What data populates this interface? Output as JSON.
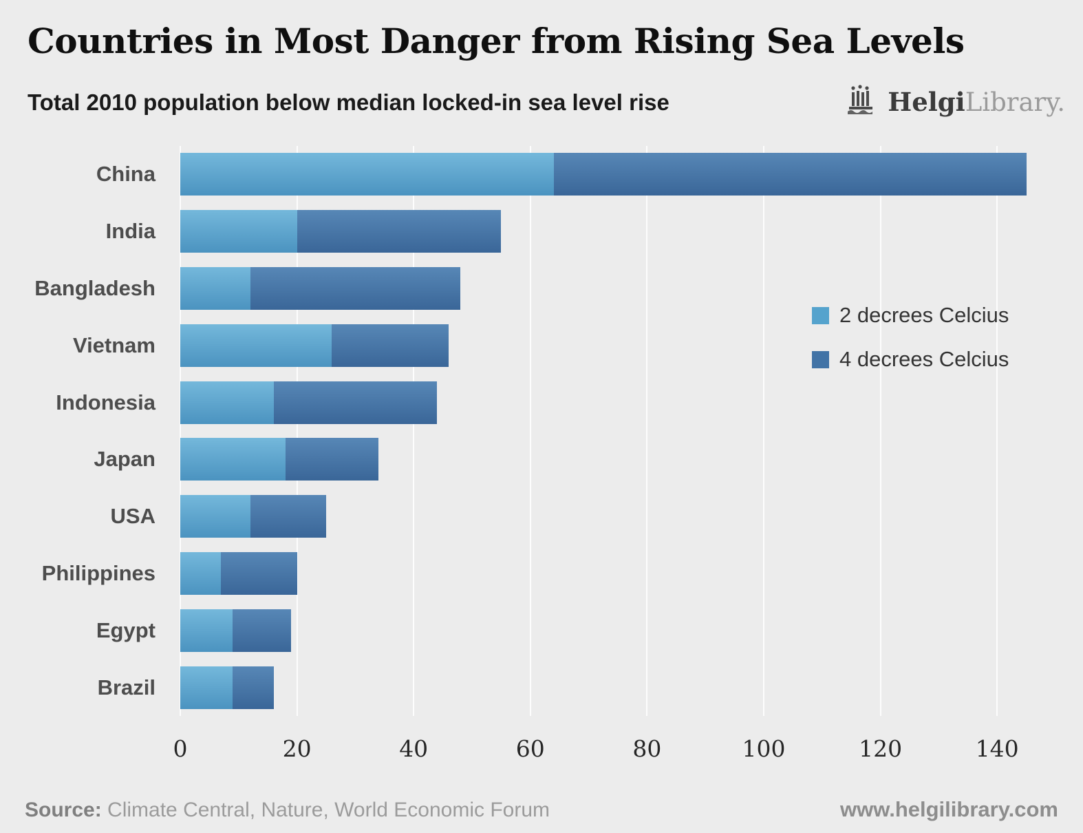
{
  "header": {
    "title": "Countries in Most Danger from Rising Sea Levels",
    "subtitle": "Total 2010 population below median locked-in sea level rise",
    "logo": {
      "bold": "Helgi",
      "light": "Library."
    }
  },
  "chart_data": {
    "type": "bar",
    "orientation": "horizontal",
    "stacked": true,
    "title": "Countries in Most Danger from Rising Sea Levels",
    "subtitle": "Total 2010 population below median locked-in sea level rise",
    "xlabel": "",
    "ylabel": "",
    "categories": [
      "China",
      "India",
      "Bangladesh",
      "Vietnam",
      "Indonesia",
      "Japan",
      "USA",
      "Philippines",
      "Egypt",
      "Brazil"
    ],
    "series": [
      {
        "name": "2 decrees Celcius",
        "color": "#55a3cd",
        "values": [
          64,
          20,
          12,
          26,
          16,
          18,
          12,
          7,
          9,
          9
        ]
      },
      {
        "name": "4 decrees Celcius",
        "color": "#4173a6",
        "values": [
          81,
          35,
          36,
          20,
          28,
          16,
          13,
          13,
          10,
          7
        ]
      }
    ],
    "bar_totals_4c": [
      145,
      55,
      48,
      46,
      44,
      34,
      25,
      20,
      19,
      16
    ],
    "xticks": [
      0,
      20,
      40,
      60,
      80,
      100,
      120,
      140
    ],
    "xlim": [
      0,
      150
    ],
    "grid": "vertical white gridlines",
    "legend_position": "middle-right"
  },
  "footer": {
    "source_label": "Source:",
    "source_text": " Climate Central, Nature, World Economic Forum",
    "website": "www.helgilibrary.com"
  }
}
